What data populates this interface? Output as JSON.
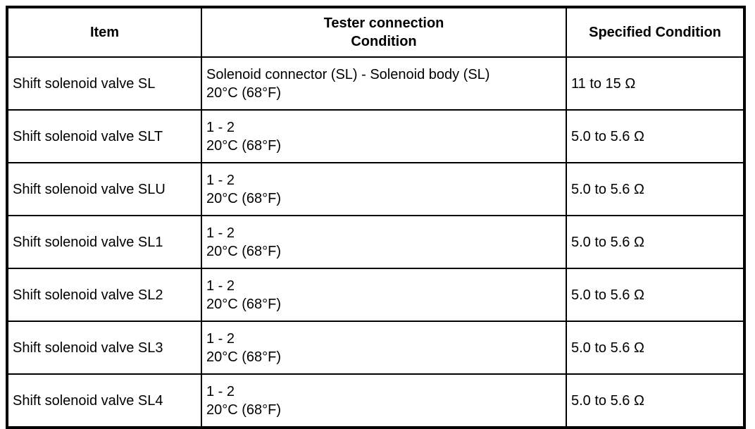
{
  "table": {
    "headers": {
      "item": "Item",
      "tester_connection_line1": "Tester connection",
      "tester_connection_line2": "Condition",
      "specified_condition": "Specified Condition"
    },
    "rows": [
      {
        "item": "Shift solenoid valve SL",
        "connection": "Solenoid connector (SL) - Solenoid body (SL)",
        "condition": "20°C (68°F)",
        "specified": "11 to 15 Ω"
      },
      {
        "item": "Shift solenoid valve SLT",
        "connection": "1 - 2",
        "condition": "20°C (68°F)",
        "specified": "5.0 to 5.6 Ω"
      },
      {
        "item": "Shift solenoid valve SLU",
        "connection": "1 - 2",
        "condition": "20°C (68°F)",
        "specified": "5.0 to 5.6 Ω"
      },
      {
        "item": "Shift solenoid valve SL1",
        "connection": "1 - 2",
        "condition": "20°C (68°F)",
        "specified": "5.0 to 5.6 Ω"
      },
      {
        "item": "Shift solenoid valve SL2",
        "connection": "1 - 2",
        "condition": "20°C (68°F)",
        "specified": "5.0 to 5.6 Ω"
      },
      {
        "item": "Shift solenoid valve SL3",
        "connection": "1 - 2",
        "condition": "20°C (68°F)",
        "specified": "5.0 to 5.6 Ω"
      },
      {
        "item": "Shift solenoid valve SL4",
        "connection": "1 - 2",
        "condition": "20°C (68°F)",
        "specified": "5.0 to 5.6 Ω"
      }
    ]
  }
}
